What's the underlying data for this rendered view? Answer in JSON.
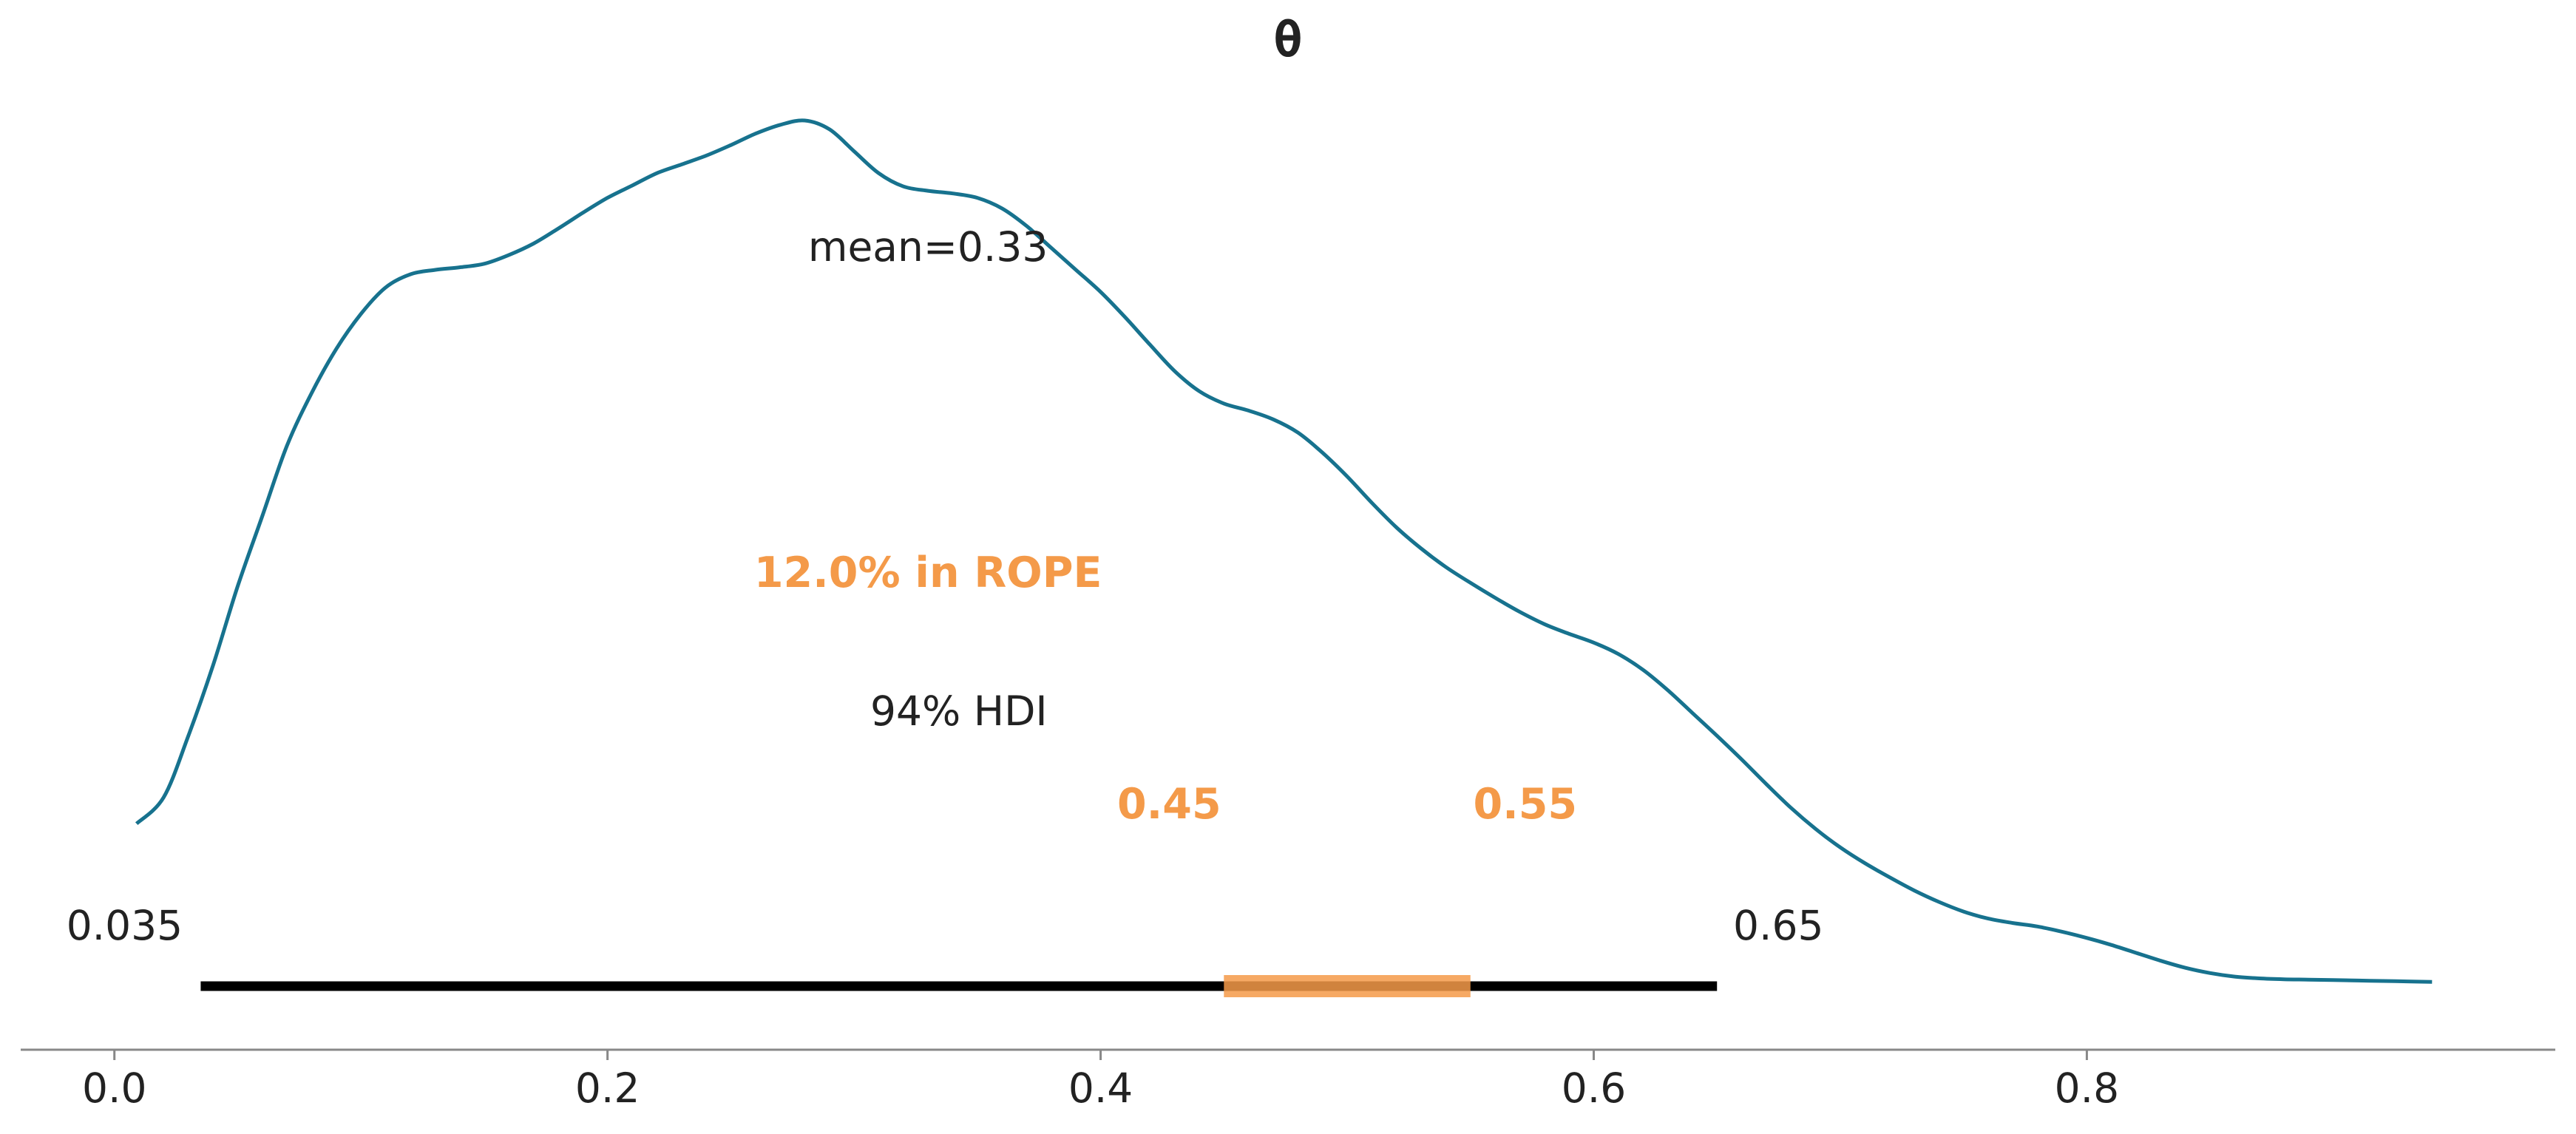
{
  "chart_data": {
    "type": "area",
    "title": "θ",
    "xlabel": "",
    "ylabel": "",
    "xlim": [
      -0.038,
      0.99
    ],
    "ylim": [
      0,
      1
    ],
    "grid": false,
    "x_ticks": [
      0.0,
      0.2,
      0.4,
      0.6,
      0.8
    ],
    "x_tick_labels": [
      "0.0",
      "0.2",
      "0.4",
      "0.6",
      "0.8"
    ],
    "density": {
      "x": [
        0.009,
        0.02,
        0.03,
        0.04,
        0.05,
        0.06,
        0.07,
        0.08,
        0.09,
        0.1,
        0.11,
        0.12,
        0.13,
        0.14,
        0.15,
        0.16,
        0.17,
        0.18,
        0.19,
        0.2,
        0.21,
        0.22,
        0.23,
        0.24,
        0.25,
        0.26,
        0.27,
        0.28,
        0.29,
        0.3,
        0.31,
        0.32,
        0.33,
        0.34,
        0.35,
        0.36,
        0.37,
        0.38,
        0.39,
        0.4,
        0.41,
        0.42,
        0.43,
        0.44,
        0.45,
        0.46,
        0.47,
        0.48,
        0.49,
        0.5,
        0.51,
        0.52,
        0.53,
        0.54,
        0.55,
        0.56,
        0.57,
        0.58,
        0.59,
        0.6,
        0.61,
        0.62,
        0.63,
        0.64,
        0.65,
        0.66,
        0.67,
        0.68,
        0.69,
        0.7,
        0.71,
        0.72,
        0.73,
        0.74,
        0.75,
        0.76,
        0.77,
        0.78,
        0.79,
        0.8,
        0.81,
        0.82,
        0.83,
        0.84,
        0.85,
        0.86,
        0.87,
        0.88,
        0.89,
        0.9,
        0.91,
        0.92,
        0.93,
        0.94
      ],
      "y": [
        0.2,
        0.23,
        0.3,
        0.38,
        0.47,
        0.55,
        0.63,
        0.69,
        0.74,
        0.78,
        0.81,
        0.825,
        0.83,
        0.833,
        0.837,
        0.847,
        0.86,
        0.877,
        0.895,
        0.912,
        0.926,
        0.94,
        0.95,
        0.96,
        0.972,
        0.985,
        0.995,
        1.0,
        0.99,
        0.965,
        0.94,
        0.925,
        0.92,
        0.917,
        0.912,
        0.9,
        0.88,
        0.855,
        0.83,
        0.805,
        0.776,
        0.745,
        0.715,
        0.692,
        0.678,
        0.67,
        0.66,
        0.645,
        0.622,
        0.595,
        0.565,
        0.537,
        0.513,
        0.492,
        0.474,
        0.457,
        0.441,
        0.427,
        0.416,
        0.406,
        0.393,
        0.375,
        0.352,
        0.326,
        0.3,
        0.273,
        0.245,
        0.218,
        0.194,
        0.173,
        0.155,
        0.139,
        0.124,
        0.111,
        0.1,
        0.092,
        0.087,
        0.083,
        0.077,
        0.07,
        0.062,
        0.053,
        0.044,
        0.036,
        0.03,
        0.026,
        0.024,
        0.023,
        0.0225,
        0.022,
        0.0215,
        0.021,
        0.0205,
        0.02
      ],
      "color": "#17728e"
    },
    "annotations": {
      "mean_label": "mean=0.33",
      "mean_x": 0.33,
      "hdi_label": "94% HDI",
      "hdi": [
        0.035,
        0.65
      ],
      "hdi_low_label": "0.035",
      "hdi_high_label": "0.65",
      "rope": [
        0.45,
        0.55
      ],
      "rope_low_label": "0.45",
      "rope_high_label": "0.55",
      "rope_percent_label": "12.0% in ROPE",
      "rope_color": "#f49a49"
    }
  }
}
